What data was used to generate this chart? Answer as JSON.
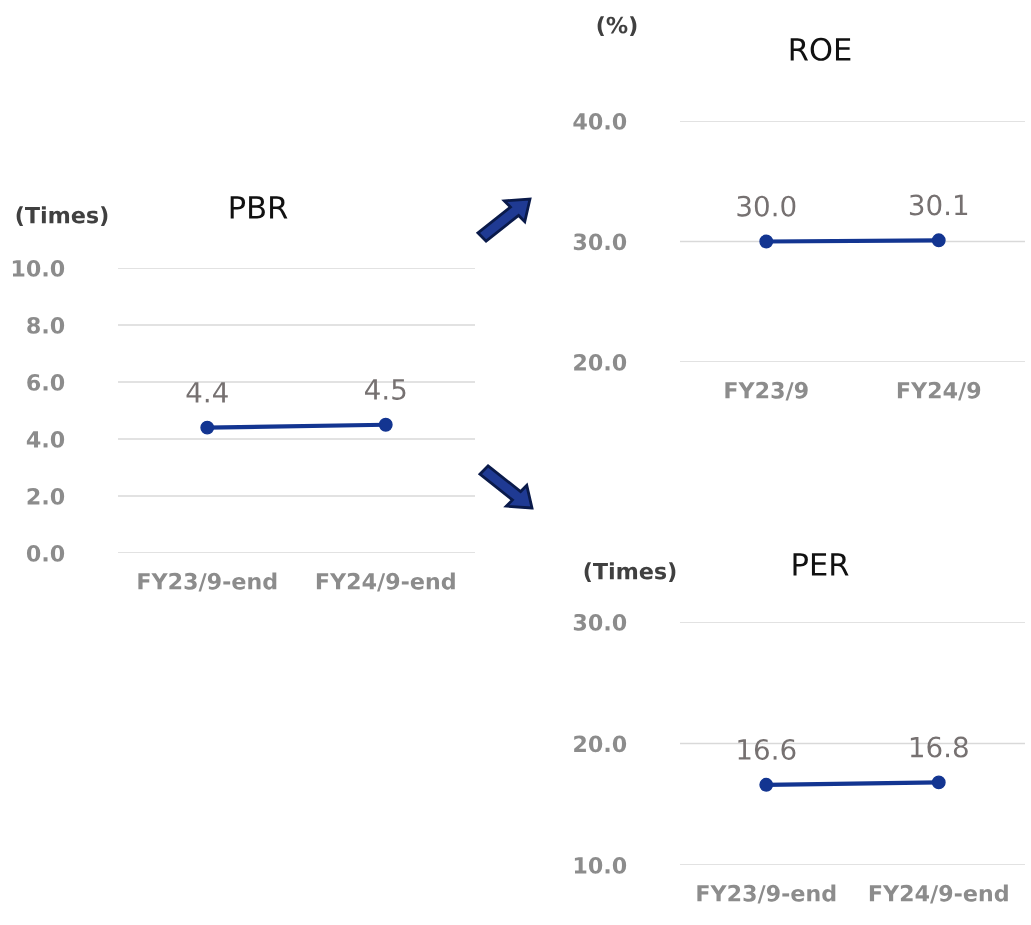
{
  "chart_data": [
    {
      "type": "line",
      "title": "PBR",
      "ylabel": "(Times)",
      "categories": [
        "FY23/9-end",
        "FY24/9-end"
      ],
      "series": [
        {
          "color": "#133591",
          "values": [
            4.4,
            4.5
          ]
        }
      ],
      "ylim": [
        0,
        10
      ],
      "yticks": [
        {
          "value": 0,
          "label": "0.0"
        },
        {
          "value": 2,
          "label": "2.0"
        },
        {
          "value": 4,
          "label": "4.0"
        },
        {
          "value": 6,
          "label": "6.0"
        },
        {
          "value": 8,
          "label": "8.0"
        },
        {
          "value": 10,
          "label": "10.0"
        }
      ],
      "grid": "y",
      "marker": "circle",
      "data_labels": true
    },
    {
      "type": "line",
      "title": "ROE",
      "ylabel": "(%)",
      "categories": [
        "FY23/9",
        "FY24/9"
      ],
      "series": [
        {
          "color": "#133591",
          "values": [
            30.0,
            30.1
          ],
          "value_labels": [
            "30.0",
            "30.1"
          ]
        }
      ],
      "ylim": [
        20,
        40
      ],
      "yticks": [
        {
          "value": 20,
          "label": "20.0"
        },
        {
          "value": 30,
          "label": "30.0"
        },
        {
          "value": 40,
          "label": "40.0"
        }
      ],
      "grid": "y",
      "marker": "circle"
    },
    {
      "type": "line",
      "title": "PER",
      "ylabel": "(Times)",
      "categories": [
        "FY23/9-end",
        "FY24/9-end"
      ],
      "series": [
        {
          "color": "#133591",
          "values": [
            16.6,
            16.8
          ]
        }
      ],
      "ylim": [
        10,
        30
      ],
      "yticks": [
        {
          "value": 10,
          "label": "10.0"
        },
        {
          "value": 20,
          "label": "20.0"
        },
        {
          "value": 30,
          "label": "30.0"
        }
      ],
      "grid": "y",
      "marker": "circle",
      "data_labels": true
    }
  ]
}
